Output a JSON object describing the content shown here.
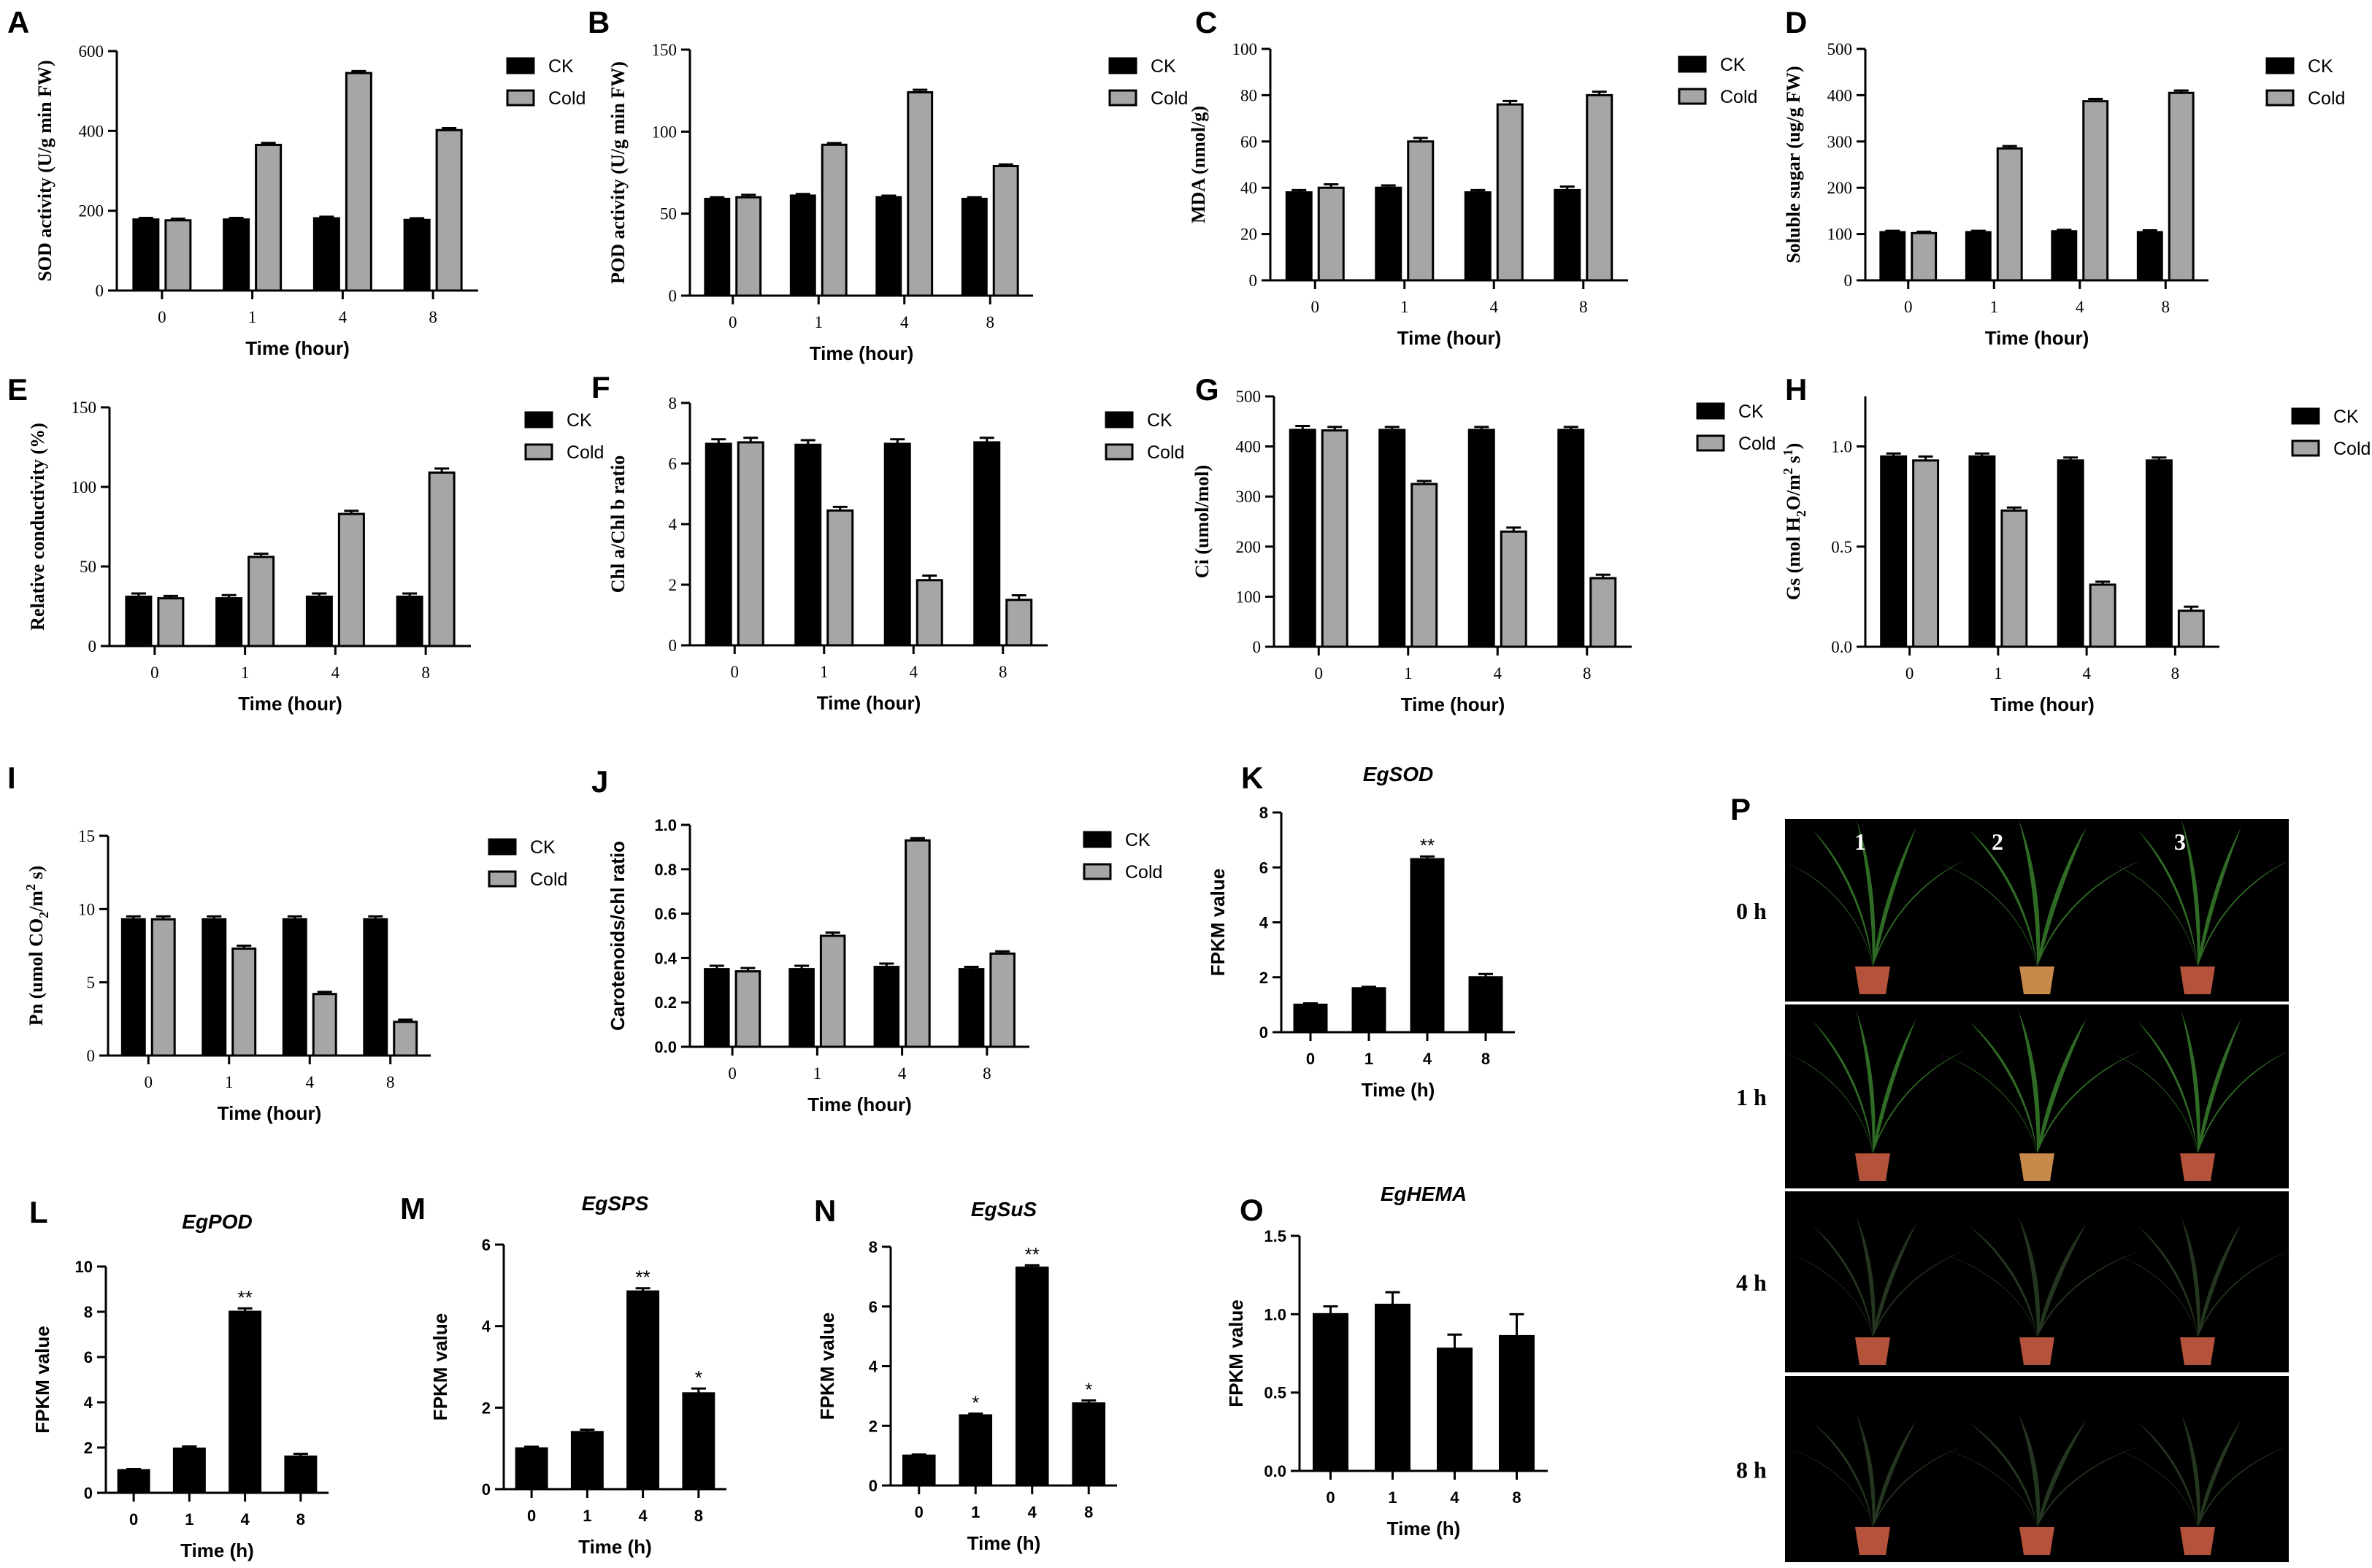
{
  "colors": {
    "ck": "#000000",
    "cold": "#a6a6a6",
    "photo_bg": "#000000",
    "leaf": "#2f6b25",
    "pot": "#b5523c"
  },
  "chart_data": [
    {
      "id": "A",
      "type": "bar",
      "ylabel": "SOD activity (U/g min FW)",
      "xlabel": "Time (hour)",
      "categories": [
        "0",
        "1",
        "4",
        "8"
      ],
      "ylim": [
        0,
        600
      ],
      "yticks": [
        "0",
        "200",
        "400",
        "600"
      ],
      "legend": "right",
      "series": [
        {
          "name": "CK",
          "values": [
            178,
            178,
            181,
            177
          ],
          "err": [
            4,
            4,
            4,
            4
          ]
        },
        {
          "name": "Cold",
          "values": [
            176,
            365,
            545,
            402
          ],
          "err": [
            4,
            5,
            5,
            5
          ]
        }
      ]
    },
    {
      "id": "B",
      "type": "bar",
      "ylabel": "POD activity (U/g min FW)",
      "xlabel": "Time (hour)",
      "categories": [
        "0",
        "1",
        "4",
        "8"
      ],
      "ylim": [
        0,
        150
      ],
      "yticks": [
        "0",
        "50",
        "100",
        "150"
      ],
      "legend": "right",
      "series": [
        {
          "name": "CK",
          "values": [
            59,
            61,
            60,
            59
          ],
          "err": [
            1,
            1,
            1,
            1
          ]
        },
        {
          "name": "Cold",
          "values": [
            60,
            92,
            124,
            79
          ],
          "err": [
            1.5,
            1,
            1.5,
            1
          ]
        }
      ]
    },
    {
      "id": "C",
      "type": "bar",
      "ylabel": "MDA (nmol/g)",
      "xlabel": "Time (hour)",
      "categories": [
        "0",
        "1",
        "4",
        "8"
      ],
      "ylim": [
        0,
        100
      ],
      "yticks": [
        "0",
        "20",
        "40",
        "60",
        "80",
        "100"
      ],
      "legend": "right",
      "series": [
        {
          "name": "CK",
          "values": [
            38,
            40,
            38,
            39
          ],
          "err": [
            1,
            1,
            1,
            1.5
          ]
        },
        {
          "name": "Cold",
          "values": [
            40,
            60,
            76,
            80
          ],
          "err": [
            1.5,
            1.5,
            1.5,
            1.5
          ]
        }
      ]
    },
    {
      "id": "D",
      "type": "bar",
      "ylabel": "Soluble sugar (ug/g FW)",
      "xlabel": "Time (hour)",
      "categories": [
        "0",
        "1",
        "4",
        "8"
      ],
      "ylim": [
        0,
        500
      ],
      "yticks": [
        "0",
        "100",
        "200",
        "300",
        "400",
        "500"
      ],
      "legend": "right",
      "series": [
        {
          "name": "CK",
          "values": [
            104,
            104,
            106,
            104
          ],
          "err": [
            3,
            3,
            3,
            4
          ]
        },
        {
          "name": "Cold",
          "values": [
            102,
            285,
            387,
            405
          ],
          "err": [
            3,
            5,
            5,
            5
          ]
        }
      ]
    },
    {
      "id": "E",
      "type": "bar",
      "ylabel": "Relative conductivity (%)",
      "xlabel": "Time (hour)",
      "categories": [
        "0",
        "1",
        "4",
        "8"
      ],
      "ylim": [
        0,
        150
      ],
      "yticks": [
        "0",
        "50",
        "100",
        "150"
      ],
      "legend": "right",
      "series": [
        {
          "name": "CK",
          "values": [
            31,
            30,
            31,
            31
          ],
          "err": [
            2,
            2,
            2,
            2
          ]
        },
        {
          "name": "Cold",
          "values": [
            30,
            56,
            83,
            109
          ],
          "err": [
            1.5,
            2,
            2,
            2.5
          ]
        }
      ]
    },
    {
      "id": "F",
      "type": "bar",
      "ylabel": "Chl a/Chl b ratio",
      "xlabel": "Time (hour)",
      "categories": [
        "0",
        "1",
        "4",
        "8"
      ],
      "ylim": [
        0,
        8
      ],
      "yticks": [
        "0",
        "2",
        "4",
        "6",
        "8"
      ],
      "legend": "right",
      "series": [
        {
          "name": "CK",
          "values": [
            6.65,
            6.62,
            6.65,
            6.7
          ],
          "err": [
            0.15,
            0.15,
            0.15,
            0.15
          ]
        },
        {
          "name": "Cold",
          "values": [
            6.7,
            4.45,
            2.15,
            1.5
          ],
          "err": [
            0.15,
            0.12,
            0.15,
            0.15
          ]
        }
      ]
    },
    {
      "id": "G",
      "type": "bar",
      "ylabel": "Ci (umol/mol)",
      "xlabel": "Time (hour)",
      "categories": [
        "0",
        "1",
        "4",
        "8"
      ],
      "ylim": [
        0,
        500
      ],
      "yticks": [
        "0",
        "100",
        "200",
        "300",
        "400",
        "500"
      ],
      "legend": "right",
      "series": [
        {
          "name": "CK",
          "values": [
            433,
            433,
            433,
            433
          ],
          "err": [
            8,
            6,
            6,
            6
          ]
        },
        {
          "name": "Cold",
          "values": [
            432,
            325,
            230,
            137
          ],
          "err": [
            7,
            6,
            8,
            7
          ]
        }
      ]
    },
    {
      "id": "H",
      "type": "bar",
      "ylabel": "Gs (mol H2O/m2 s1)",
      "xlabel": "Time (hour)",
      "categories": [
        "0",
        "1",
        "4",
        "8"
      ],
      "ylim": [
        0,
        1.25
      ],
      "yticks": [
        "0.0",
        "0.5",
        "1.0"
      ],
      "legend": "right",
      "series": [
        {
          "name": "CK",
          "values": [
            0.95,
            0.95,
            0.93,
            0.93
          ],
          "err": [
            0.015,
            0.015,
            0.015,
            0.015
          ]
        },
        {
          "name": "Cold",
          "values": [
            0.93,
            0.68,
            0.31,
            0.18
          ],
          "err": [
            0.02,
            0.015,
            0.015,
            0.02
          ]
        }
      ]
    },
    {
      "id": "I",
      "type": "bar",
      "ylabel": "Pn (umol CO2/m2 s)",
      "xlabel": "Time (hour)",
      "categories": [
        "0",
        "1",
        "4",
        "8"
      ],
      "ylim": [
        0,
        15
      ],
      "yticks": [
        "0",
        "5",
        "10",
        "15"
      ],
      "legend": "right",
      "series": [
        {
          "name": "CK",
          "values": [
            9.3,
            9.3,
            9.3,
            9.3
          ],
          "err": [
            0.2,
            0.2,
            0.2,
            0.2
          ]
        },
        {
          "name": "Cold",
          "values": [
            9.3,
            7.3,
            4.2,
            2.3
          ],
          "err": [
            0.2,
            0.2,
            0.15,
            0.15
          ]
        }
      ]
    },
    {
      "id": "J",
      "type": "bar",
      "ylabel": "Carotenoids/chl ratio",
      "xlabel": "Time (hour)",
      "categories": [
        "0",
        "1",
        "4",
        "8"
      ],
      "ylim": [
        0,
        1.0
      ],
      "yticks": [
        "0.0",
        "0.2",
        "0.4",
        "0.6",
        "0.8",
        "1.0"
      ],
      "legend": "right",
      "series": [
        {
          "name": "CK",
          "values": [
            0.35,
            0.35,
            0.36,
            0.35
          ],
          "err": [
            0.015,
            0.015,
            0.015,
            0.01
          ]
        },
        {
          "name": "Cold",
          "values": [
            0.34,
            0.5,
            0.93,
            0.42
          ],
          "err": [
            0.015,
            0.015,
            0.01,
            0.01
          ]
        }
      ]
    },
    {
      "id": "K",
      "type": "bar",
      "title": "EgSOD",
      "ylabel": "FPKM value",
      "xlabel": "Time (h)",
      "categories": [
        "0",
        "1",
        "4",
        "8"
      ],
      "ylim": [
        0,
        8
      ],
      "yticks": [
        "0",
        "2",
        "4",
        "6",
        "8"
      ],
      "series": [
        {
          "name": "",
          "values": [
            1.0,
            1.6,
            6.3,
            2.0
          ],
          "err": [
            0.05,
            0.05,
            0.1,
            0.12
          ]
        }
      ],
      "annotations": [
        "",
        "",
        "**",
        ""
      ]
    },
    {
      "id": "L",
      "type": "bar",
      "title": "EgPOD",
      "ylabel": "FPKM value",
      "xlabel": "Time (h)",
      "categories": [
        "0",
        "1",
        "4",
        "8"
      ],
      "ylim": [
        0,
        10
      ],
      "yticks": [
        "0",
        "2",
        "4",
        "6",
        "8",
        "10"
      ],
      "series": [
        {
          "name": "",
          "values": [
            1.0,
            1.95,
            8.0,
            1.6
          ],
          "err": [
            0.05,
            0.1,
            0.15,
            0.12
          ]
        }
      ],
      "annotations": [
        "",
        "",
        "**",
        ""
      ]
    },
    {
      "id": "M",
      "type": "bar",
      "title": "EgSPS",
      "ylabel": "FPKM value",
      "xlabel": "Time (h)",
      "categories": [
        "0",
        "1",
        "4",
        "8"
      ],
      "ylim": [
        0,
        6
      ],
      "yticks": [
        "0",
        "2",
        "4",
        "6"
      ],
      "series": [
        {
          "name": "",
          "values": [
            1.0,
            1.4,
            4.85,
            2.35
          ],
          "err": [
            0.04,
            0.06,
            0.08,
            0.12
          ]
        }
      ],
      "annotations": [
        "",
        "",
        "**",
        "*"
      ]
    },
    {
      "id": "N",
      "type": "bar",
      "title": "EgSuS",
      "ylabel": "FPKM value",
      "xlabel": "Time (h)",
      "categories": [
        "0",
        "1",
        "4",
        "8"
      ],
      "ylim": [
        0,
        8
      ],
      "yticks": [
        "0",
        "2",
        "4",
        "6",
        "8"
      ],
      "series": [
        {
          "name": "",
          "values": [
            1.0,
            2.35,
            7.3,
            2.75
          ],
          "err": [
            0.04,
            0.06,
            0.08,
            0.1
          ]
        }
      ],
      "annotations": [
        "",
        "*",
        "**",
        "*"
      ]
    },
    {
      "id": "O",
      "type": "bar",
      "title": "EgHEMA",
      "ylabel": "FPKM value",
      "xlabel": "Time (h)",
      "categories": [
        "0",
        "1",
        "4",
        "8"
      ],
      "ylim": [
        0,
        1.5
      ],
      "yticks": [
        "0.0",
        "0.5",
        "1.0",
        "1.5"
      ],
      "series": [
        {
          "name": "",
          "values": [
            1.0,
            1.06,
            0.78,
            0.86
          ],
          "err": [
            0.05,
            0.08,
            0.09,
            0.14
          ]
        }
      ],
      "annotations": [
        "",
        "",
        "",
        ""
      ]
    }
  ],
  "photo_panel": {
    "letter": "P",
    "columns": [
      "1",
      "2",
      "3"
    ],
    "rows": [
      "0 h",
      "1 h",
      "4 h",
      "8 h"
    ]
  }
}
